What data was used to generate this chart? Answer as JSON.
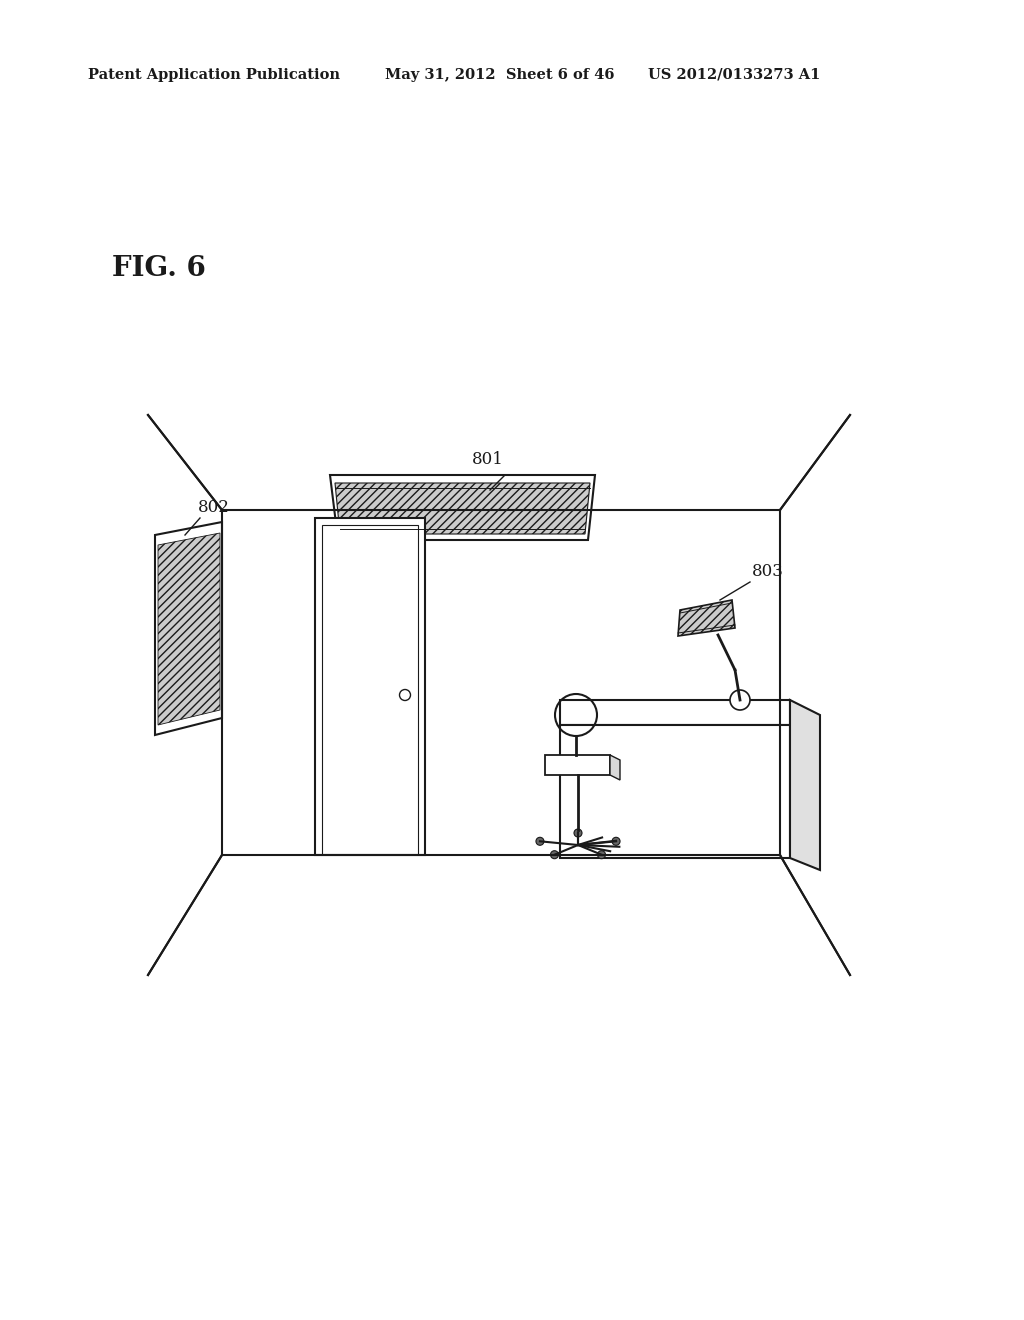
{
  "fig_label": "FIG. 6",
  "header_left": "Patent Application Publication",
  "header_center": "May 31, 2012  Sheet 6 of 46",
  "header_right": "US 2012/0133273 A1",
  "label_801": "801",
  "label_802": "802",
  "label_803": "803",
  "bg_color": "#ffffff",
  "line_color": "#1a1a1a"
}
